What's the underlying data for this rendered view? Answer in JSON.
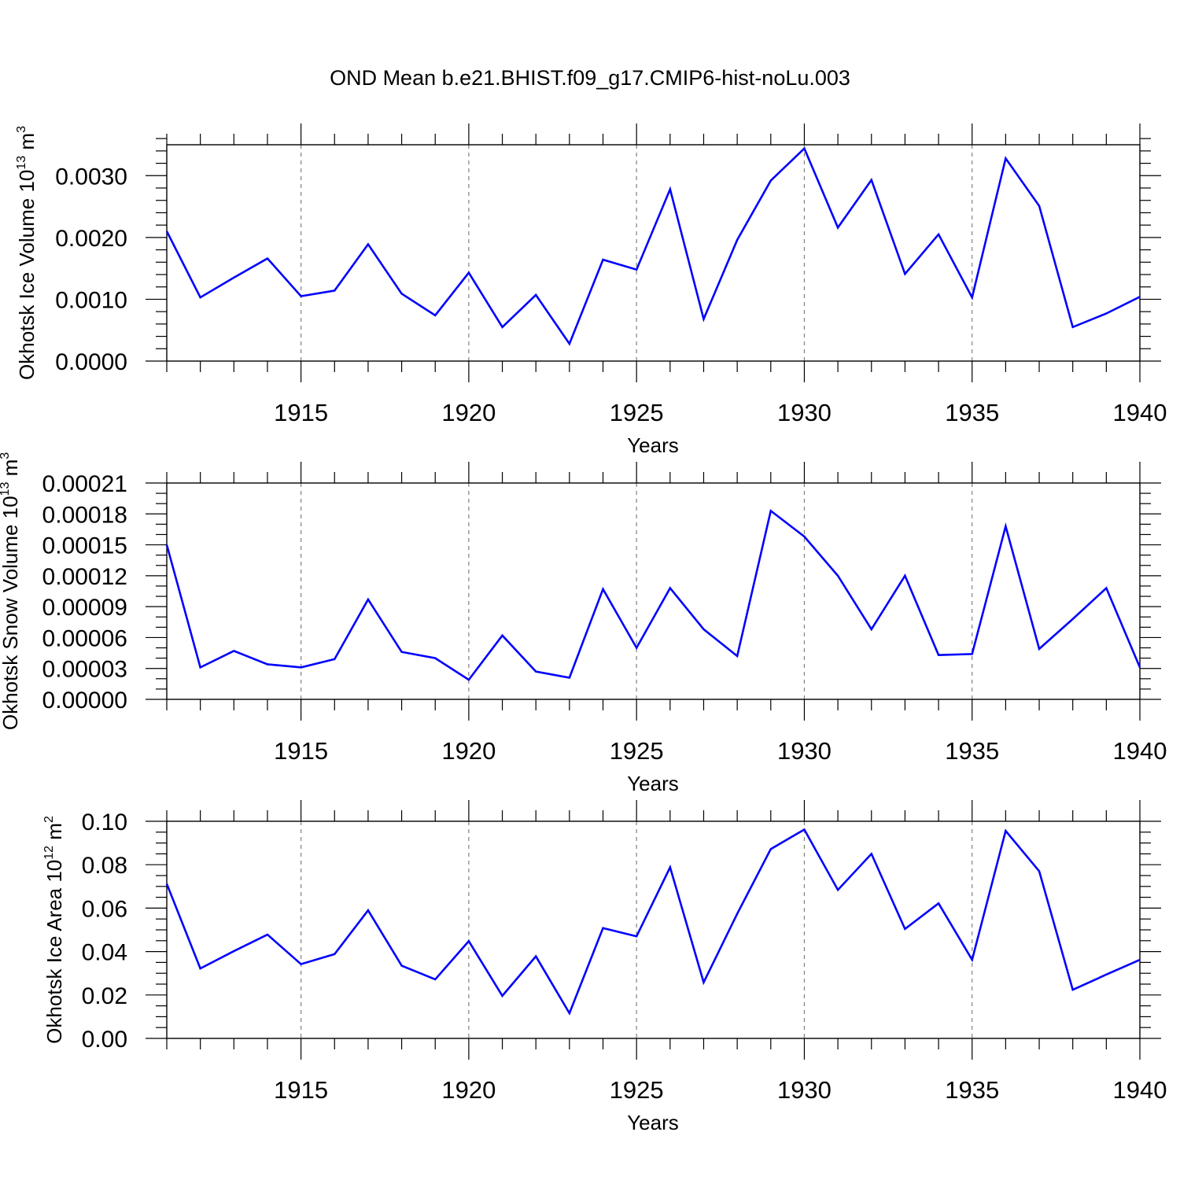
{
  "title": "OND Mean b.e21.BHIST.f09_g17.CMIP6-hist-noLu.003",
  "colors": {
    "line": "#0000ff",
    "axis": "#000000",
    "grid": "#808080"
  },
  "chart_data": [
    {
      "type": "line",
      "title": "OND Mean b.e21.BHIST.f09_g17.CMIP6-hist-noLu.003",
      "xlabel": "Years",
      "ylabel": {
        "base": "Okhotsk Ice Volume 10",
        "exp": "13",
        "unit": "m",
        "unit_exp": "3"
      },
      "xlim": [
        1911,
        1940
      ],
      "ylim": [
        0,
        0.0035
      ],
      "x_ticks": [
        1915,
        1920,
        1925,
        1930,
        1935,
        1940
      ],
      "x_tick_labels": [
        "1915",
        "1920",
        "1925",
        "1930",
        "1935",
        "1940"
      ],
      "y_ticks": [
        0,
        0.001,
        0.002,
        0.003
      ],
      "y_tick_labels": [
        "0.0000",
        "0.0010",
        "0.0020",
        "0.0030"
      ],
      "y_minor_step": 0.0002,
      "grid": "dashed vertical at major x ticks",
      "x": [
        1911,
        1912,
        1913,
        1914,
        1915,
        1916,
        1917,
        1918,
        1919,
        1920,
        1921,
        1922,
        1923,
        1924,
        1925,
        1926,
        1927,
        1928,
        1929,
        1930,
        1931,
        1932,
        1933,
        1934,
        1935,
        1936,
        1937,
        1938,
        1939,
        1940
      ],
      "series": [
        {
          "name": "Okhotsk Ice Volume",
          "values": [
            0.0021,
            0.00103,
            0.00135,
            0.00166,
            0.00105,
            0.00114,
            0.00189,
            0.00109,
            0.00074,
            0.00143,
            0.00055,
            0.00107,
            0.00028,
            0.00164,
            0.00148,
            0.00278,
            0.00068,
            0.00196,
            0.00292,
            0.00344,
            0.00216,
            0.00293,
            0.00141,
            0.00205,
            0.00103,
            0.00328,
            0.00251,
            0.00055,
            0.00077,
            0.00104
          ]
        }
      ]
    },
    {
      "type": "line",
      "xlabel": "Years",
      "ylabel": {
        "base": "Okhotsk Snow Volume 10",
        "exp": "13",
        "unit": "m",
        "unit_exp": "3"
      },
      "xlim": [
        1911,
        1940
      ],
      "ylim": [
        0,
        0.00021
      ],
      "x_ticks": [
        1915,
        1920,
        1925,
        1930,
        1935,
        1940
      ],
      "x_tick_labels": [
        "1915",
        "1920",
        "1925",
        "1930",
        "1935",
        "1940"
      ],
      "y_ticks": [
        0,
        3e-05,
        6e-05,
        9e-05,
        0.00012,
        0.00015,
        0.00018,
        0.00021
      ],
      "y_tick_labels": [
        "0.00000",
        "0.00003",
        "0.00006",
        "0.00009",
        "0.00012",
        "0.00015",
        "0.00018",
        "0.00021"
      ],
      "y_minor_step": 1e-05,
      "grid": "dashed vertical at major x ticks",
      "x": [
        1911,
        1912,
        1913,
        1914,
        1915,
        1916,
        1917,
        1918,
        1919,
        1920,
        1921,
        1922,
        1923,
        1924,
        1925,
        1926,
        1927,
        1928,
        1929,
        1930,
        1931,
        1932,
        1933,
        1934,
        1935,
        1936,
        1937,
        1938,
        1939,
        1940
      ],
      "series": [
        {
          "name": "Okhotsk Snow Volume",
          "values": [
            0.00015,
            3.1e-05,
            4.7e-05,
            3.4e-05,
            3.1e-05,
            3.9e-05,
            9.7e-05,
            4.6e-05,
            4e-05,
            1.9e-05,
            6.2e-05,
            2.7e-05,
            2.1e-05,
            0.000107,
            5e-05,
            0.000108,
            6.8e-05,
            4.2e-05,
            0.000183,
            0.000158,
            0.00012,
            6.8e-05,
            0.00012,
            4.3e-05,
            4.4e-05,
            0.000168,
            4.9e-05,
            7.8e-05,
            0.000108,
            3.1e-05
          ]
        }
      ]
    },
    {
      "type": "line",
      "xlabel": "Years",
      "ylabel": {
        "base": "Okhotsk Ice Area 10",
        "exp": "12",
        "unit": "m",
        "unit_exp": "2"
      },
      "xlim": [
        1911,
        1940
      ],
      "ylim": [
        0,
        0.1
      ],
      "x_ticks": [
        1915,
        1920,
        1925,
        1930,
        1935,
        1940
      ],
      "x_tick_labels": [
        "1915",
        "1920",
        "1925",
        "1930",
        "1935",
        "1940"
      ],
      "y_ticks": [
        0,
        0.02,
        0.04,
        0.06,
        0.08,
        0.1
      ],
      "y_tick_labels": [
        "0.00",
        "0.02",
        "0.04",
        "0.06",
        "0.08",
        "0.10"
      ],
      "y_minor_step": 0.005,
      "grid": "dashed vertical at major x ticks",
      "x": [
        1911,
        1912,
        1913,
        1914,
        1915,
        1916,
        1917,
        1918,
        1919,
        1920,
        1921,
        1922,
        1923,
        1924,
        1925,
        1926,
        1927,
        1928,
        1929,
        1930,
        1931,
        1932,
        1933,
        1934,
        1935,
        1936,
        1937,
        1938,
        1939,
        1940
      ],
      "series": [
        {
          "name": "Okhotsk Ice Area",
          "values": [
            0.0712,
            0.0322,
            0.0402,
            0.0478,
            0.0342,
            0.0388,
            0.059,
            0.0335,
            0.0272,
            0.0448,
            0.0196,
            0.0378,
            0.0116,
            0.0508,
            0.047,
            0.0788,
            0.0258,
            0.0574,
            0.0872,
            0.0962,
            0.0684,
            0.085,
            0.0504,
            0.0622,
            0.0362,
            0.0956,
            0.077,
            0.0224,
            0.0294,
            0.0362
          ]
        }
      ]
    }
  ]
}
